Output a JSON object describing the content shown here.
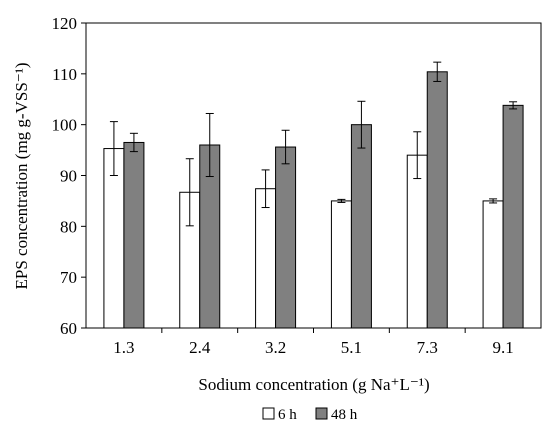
{
  "chart_data": {
    "type": "bar",
    "xlabel": "Sodium concentration (g Na⁺L⁻¹)",
    "ylabel": "EPS concentration (mg g-VSS⁻¹)",
    "ylim": [
      60,
      120
    ],
    "yticks": [
      60,
      70,
      80,
      90,
      100,
      110,
      120
    ],
    "categories": [
      "1.3",
      "2.4",
      "3.2",
      "5.1",
      "7.3",
      "9.1"
    ],
    "series": [
      {
        "name": "6 h",
        "color": "#ffffff",
        "values": [
          95.3,
          86.7,
          87.4,
          85.0,
          94.0,
          85.0
        ],
        "errors": [
          5.3,
          6.6,
          3.7,
          0.3,
          4.6,
          0.4
        ]
      },
      {
        "name": "48 h",
        "color": "#808080",
        "values": [
          96.5,
          96.0,
          95.6,
          100.0,
          110.4,
          103.8
        ],
        "errors": [
          1.8,
          6.2,
          3.3,
          4.6,
          1.9,
          0.7
        ]
      }
    ],
    "grid": false,
    "legend": "bottom-center"
  }
}
